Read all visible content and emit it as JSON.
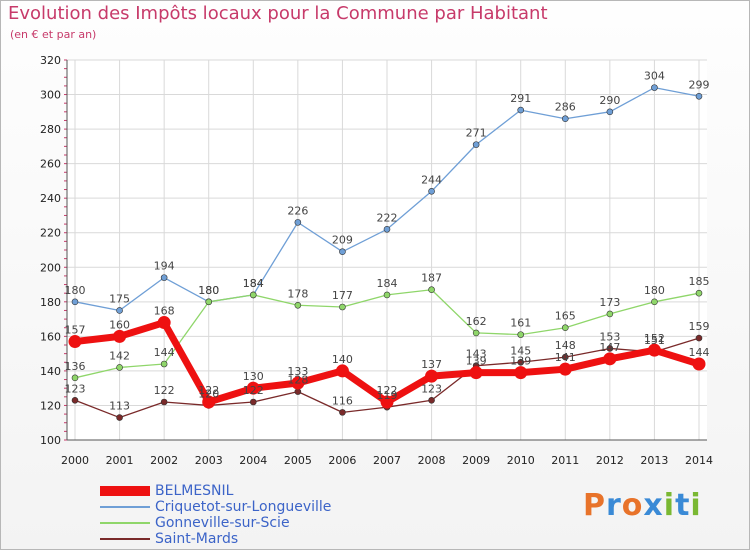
{
  "header": {
    "title": "Evolution des Impôts locaux pour la Commune par Habitant",
    "subtitle": "(en € et par an)"
  },
  "logo": {
    "text": "Proxiti",
    "colors": [
      "#e8732a",
      "#3a8ad6",
      "#e8732a",
      "#3a8ad6",
      "#7ab832",
      "#3a8ad6",
      "#7ab832"
    ]
  },
  "colors": {
    "title": "#c73a6a",
    "grid": "#d9d9d9",
    "axis_text": "#222222",
    "label_text": "#444444"
  },
  "chart_data": {
    "type": "line",
    "title": "Evolution des Impôts locaux pour la Commune par Habitant",
    "subtitle": "(en € et par an)",
    "xlabel": "",
    "ylabel": "",
    "ylim": [
      100,
      320
    ],
    "y_ticks": [
      100,
      120,
      140,
      160,
      180,
      200,
      220,
      240,
      260,
      280,
      300,
      320
    ],
    "categories": [
      "2000",
      "2001",
      "2002",
      "2003",
      "2004",
      "2005",
      "2006",
      "2007",
      "2008",
      "2009",
      "2010",
      "2011",
      "2012",
      "2013",
      "2014"
    ],
    "legend_position": "bottom-left",
    "series": [
      {
        "name": "BELMESNIL",
        "color": "#ee1111",
        "values": [
          157,
          160,
          168,
          122,
          130,
          133,
          140,
          122,
          137,
          139,
          139,
          141,
          147,
          152,
          144
        ],
        "labels": [
          "157",
          "160",
          "168",
          "122",
          "130",
          "133",
          "140",
          "122",
          "137",
          "139",
          "139",
          "141",
          "147",
          "152",
          "144"
        ]
      },
      {
        "name": "Criquetot-sur-Longueville",
        "color": "#6f9fd6",
        "values": [
          180,
          175,
          194,
          180,
          184,
          226,
          209,
          222,
          244,
          271,
          291,
          286,
          290,
          304,
          299
        ],
        "labels": [
          "180",
          "175",
          "194",
          "180",
          "184",
          "226",
          "209",
          "222",
          "244",
          "271",
          "291",
          "286",
          "290",
          "304",
          "299"
        ]
      },
      {
        "name": "Gonneville-sur-Scie",
        "color": "#8fd66a",
        "values": [
          136,
          142,
          144,
          180,
          184,
          178,
          177,
          184,
          187,
          162,
          161,
          165,
          173,
          180,
          185
        ],
        "labels": [
          "136",
          "142",
          "144",
          "180",
          "184",
          "178",
          "177",
          "184",
          "187",
          "162",
          "161",
          "165",
          "173",
          "180",
          "185"
        ]
      },
      {
        "name": "Saint-Mards",
        "color": "#7a2a2a",
        "values": [
          123,
          113,
          122,
          120,
          122,
          128,
          116,
          119,
          123,
          143,
          145,
          148,
          153,
          151,
          159
        ],
        "labels": [
          "123",
          "113",
          "122",
          "120",
          "122",
          "128",
          "116",
          "119",
          "123",
          "143",
          "145",
          "148",
          "153",
          "151",
          "159"
        ]
      }
    ]
  }
}
